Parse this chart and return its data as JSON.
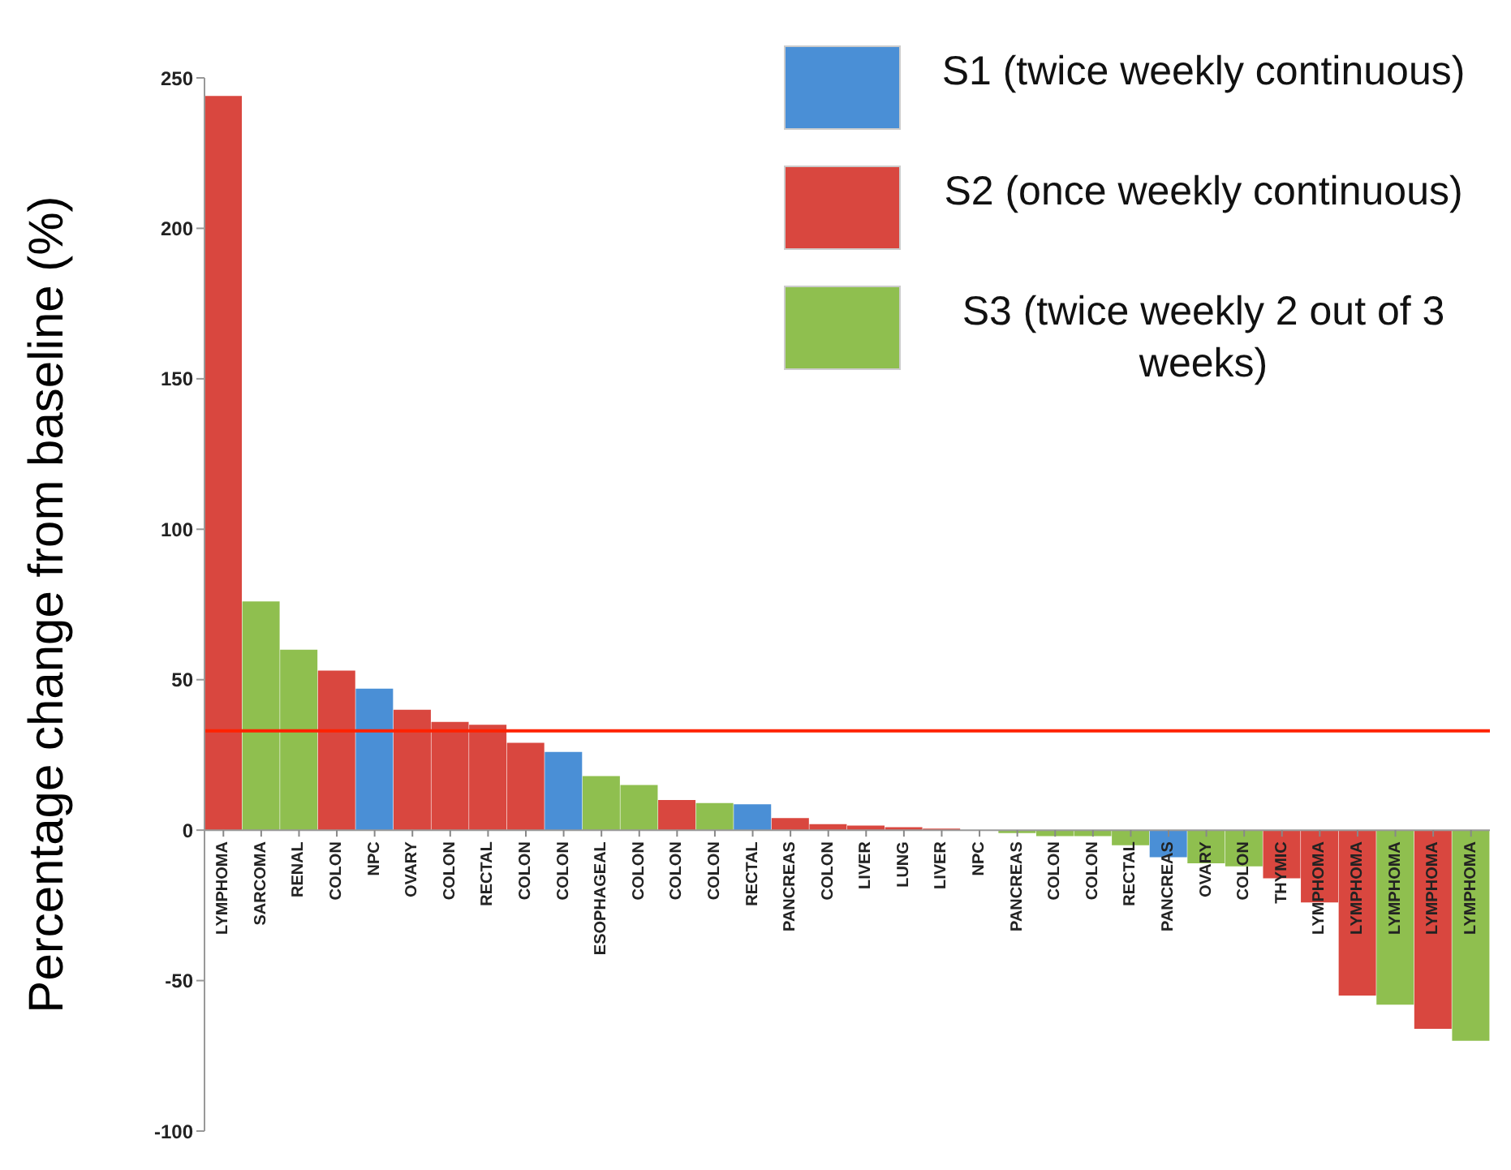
{
  "chart_data": {
    "type": "bar",
    "ylabel": "Percentage change from baseline (%)",
    "categories": [
      "LYMPHOMA",
      "SARCOMA",
      "RENAL",
      "COLON",
      "NPC",
      "OVARY",
      "COLON",
      "RECTAL",
      "COLON",
      "COLON",
      "ESOPHAGEAL",
      "COLON",
      "COLON",
      "COLON",
      "RECTAL",
      "PANCREAS",
      "COLON",
      "LIVER",
      "LUNG",
      "LIVER",
      "NPC",
      "PANCREAS",
      "COLON",
      "COLON",
      "RECTAL",
      "PANCREAS",
      "OVARY",
      "COLON",
      "THYMIC",
      "LYMPHOMA",
      "LYMPHOMA",
      "LYMPHOMA",
      "LYMPHOMA",
      "LYMPHOMA"
    ],
    "stacked": true,
    "series": [
      {
        "name": "S1 (twice weekly continuous)",
        "color": "#4a8fd6",
        "values": [
          null,
          null,
          null,
          null,
          47,
          null,
          null,
          null,
          null,
          26,
          null,
          null,
          null,
          null,
          8.6,
          null,
          null,
          null,
          null,
          null,
          null,
          null,
          null,
          null,
          null,
          -9,
          null,
          null,
          null,
          null,
          null,
          null,
          null,
          null
        ]
      },
      {
        "name": "S2 (once weekly continuous)",
        "color": "#d9473f",
        "values": [
          244,
          null,
          null,
          53,
          null,
          40,
          36,
          35,
          29,
          null,
          null,
          null,
          10,
          null,
          null,
          4,
          2,
          1.5,
          1,
          0.5,
          0,
          null,
          null,
          null,
          null,
          null,
          null,
          null,
          -16,
          -24,
          -55,
          null,
          -66,
          null
        ]
      },
      {
        "name": "S3 (twice weekly 2 out of 3 weeks)",
        "color": "#8fbf4f",
        "values": [
          null,
          76,
          60,
          null,
          null,
          null,
          null,
          null,
          null,
          null,
          18,
          15,
          null,
          9,
          null,
          null,
          null,
          null,
          null,
          null,
          null,
          -1,
          -2,
          -2,
          -5,
          null,
          -11,
          -12,
          null,
          null,
          null,
          -58,
          null,
          -70
        ]
      }
    ],
    "ylim": [
      -100,
      250
    ],
    "yticks": [
      -100,
      -50,
      0,
      50,
      100,
      150,
      200,
      250
    ],
    "ref_lines": [
      {
        "axis": "y",
        "value": 33,
        "color": "#ff2200"
      }
    ],
    "legend": "top right"
  }
}
